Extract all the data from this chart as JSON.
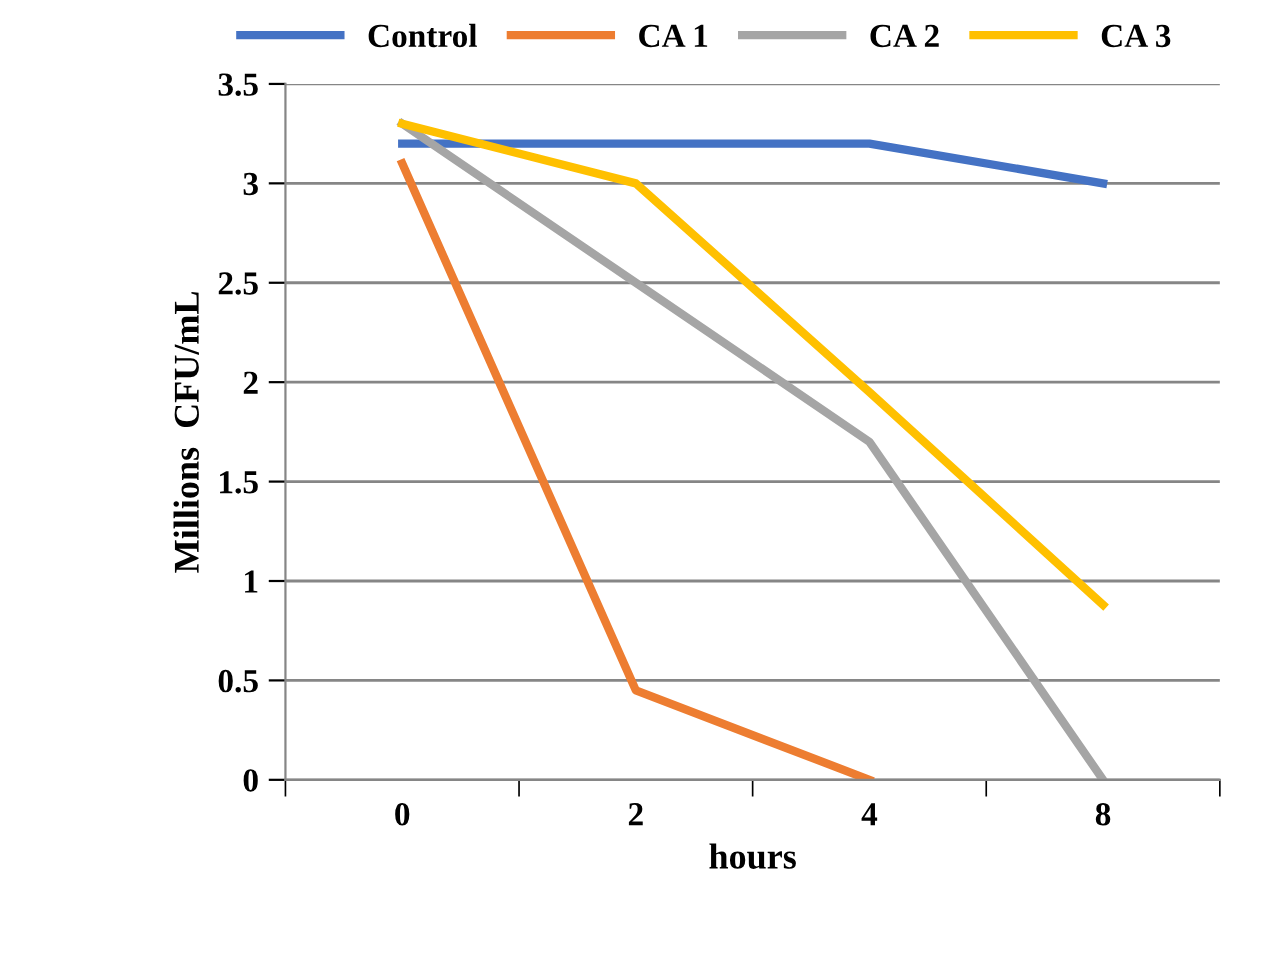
{
  "chart_data": {
    "type": "line",
    "xlabel": "hours",
    "ylabel": "Millions  CFU/mL",
    "categories": [
      "0",
      "2",
      "4",
      "8"
    ],
    "series": [
      {
        "name": "Control",
        "color": "#4472c4",
        "values": [
          3.2,
          3.2,
          3.2,
          3.0
        ]
      },
      {
        "name": "CA 1",
        "color": "#ed7d31",
        "values": [
          3.1,
          0.45,
          0,
          null
        ]
      },
      {
        "name": "CA 2",
        "color": "#a5a5a5",
        "values": [
          3.3,
          2.5,
          1.7,
          0
        ]
      },
      {
        "name": "CA 3",
        "color": "#ffc000",
        "values": [
          3.3,
          3.0,
          1.95,
          0.88
        ]
      }
    ],
    "ylim": [
      0,
      3.5
    ],
    "yticks": [
      0,
      0.5,
      1,
      1.5,
      2,
      2.5,
      3,
      3.5
    ],
    "grid": "y",
    "legend": "top",
    "marker": "none",
    "line_style": "solid"
  }
}
